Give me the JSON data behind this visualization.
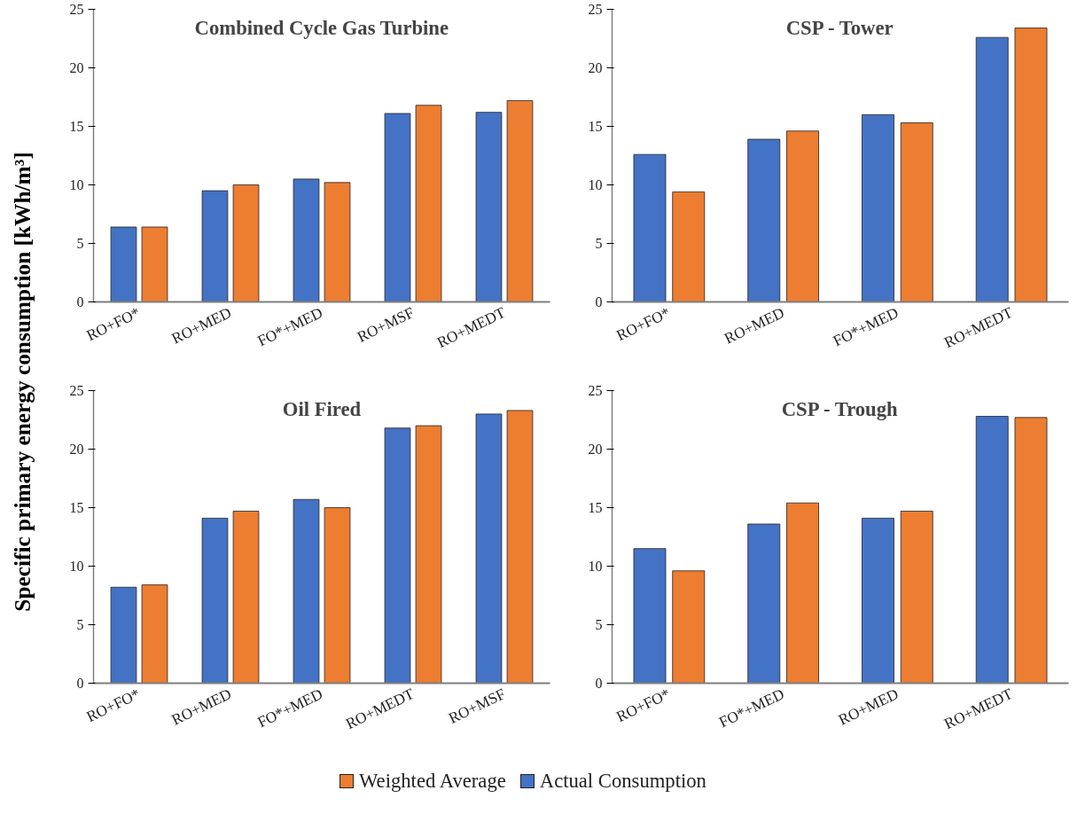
{
  "chart_data": [
    {
      "type": "bar",
      "title": "Combined Cycle Gas Turbine",
      "ylabel": "Specific primary energy consumption [kWh/m³]",
      "legend": "bottom",
      "categories": [
        "RO+FO*",
        "RO+MED",
        "FO*+MED",
        "RO+MSF",
        "RO+MEDT"
      ],
      "ylim": [
        0,
        25
      ],
      "yticks": [
        0,
        5,
        10,
        15,
        20,
        25
      ],
      "series": [
        {
          "name": "Actual Consumption",
          "color": "#4472c4",
          "values": [
            6.4,
            9.5,
            10.5,
            16.1,
            16.2
          ]
        },
        {
          "name": "Weighted Average",
          "color": "#ed7d31",
          "values": [
            6.4,
            10.0,
            10.2,
            16.8,
            17.2
          ]
        }
      ]
    },
    {
      "type": "bar",
      "title": "CSP - Tower",
      "categories": [
        "RO+FO*",
        "RO+MED",
        "FO*+MED",
        "RO+MEDT"
      ],
      "ylim": [
        0,
        25
      ],
      "yticks": [
        0,
        5,
        10,
        15,
        20,
        25
      ],
      "series": [
        {
          "color": "#4472c4",
          "values": [
            12.6,
            13.9,
            16.0,
            22.6
          ]
        },
        {
          "color": "#ed7d31",
          "values": [
            9.4,
            14.6,
            15.3,
            23.4
          ]
        }
      ]
    },
    {
      "type": "bar",
      "title": "Oil Fired",
      "categories": [
        "RO+FO*",
        "RO+MED",
        "FO*+MED",
        "RO+MEDT",
        "RO+MSF"
      ],
      "ylim": [
        0,
        25
      ],
      "yticks": [
        0,
        5,
        10,
        15,
        20,
        25
      ],
      "series": [
        {
          "color": "#4472c4",
          "values": [
            8.2,
            14.1,
            15.7,
            21.8,
            23.0
          ]
        },
        {
          "color": "#ed7d31",
          "values": [
            8.4,
            14.7,
            15.0,
            22.0,
            23.3
          ]
        }
      ]
    },
    {
      "type": "bar",
      "title": "CSP - Trough",
      "categories": [
        "RO+FO*",
        "FO*+MED",
        "RO+MED",
        "RO+MEDT"
      ],
      "ylim": [
        0,
        25
      ],
      "yticks": [
        0,
        5,
        10,
        15,
        20,
        25
      ],
      "series": [
        {
          "color": "#4472c4",
          "values": [
            11.5,
            13.6,
            14.1,
            22.8
          ]
        },
        {
          "color": "#ed7d31",
          "values": [
            9.6,
            15.4,
            14.7,
            22.7
          ]
        }
      ]
    }
  ]
}
